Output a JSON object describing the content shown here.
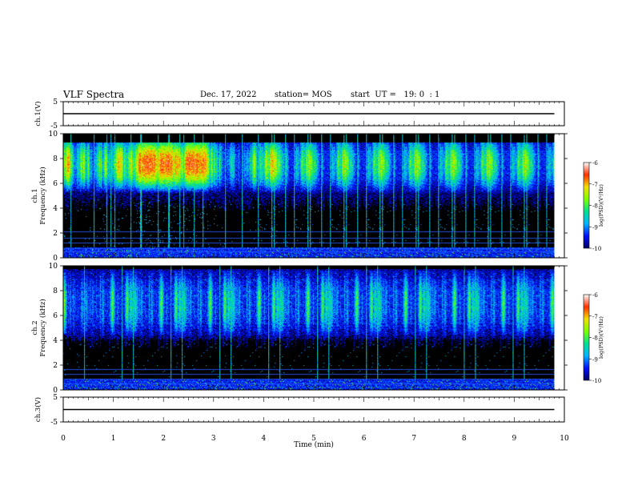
{
  "header": {
    "title": "VLF Spectra",
    "date": "Dec. 17, 2022",
    "station": "station= MOS",
    "start": "start  UT =   19: 0  : 1"
  },
  "chart_data": [
    {
      "type": "line",
      "ylabel": "ch.1(V)",
      "ylim": [
        -5,
        5
      ],
      "yticks": [
        "5",
        "-5"
      ],
      "series": [
        {
          "x": [
            0,
            9.8
          ],
          "y": [
            0,
            0
          ]
        }
      ]
    },
    {
      "type": "heatmap",
      "ylabel_lines": [
        "ch.1",
        "Frequency (kHz)"
      ],
      "ylim": [
        0,
        10
      ],
      "yticks": [
        "0",
        "2",
        "4",
        "6",
        "8",
        "10"
      ],
      "xlim": [
        0,
        10
      ],
      "data_xmax": 9.8,
      "colorbar": {
        "label": "log(PSD)(V²/Hz)",
        "range": [
          -10,
          -6
        ],
        "ticks": [
          "-6",
          "-7",
          "-8",
          "-9",
          "-10"
        ],
        "colors": [
          "#000060",
          "#0010ff",
          "#00b4ff",
          "#00e090",
          "#7cff00",
          "#f0e000",
          "#ff3000",
          "#ffffff"
        ]
      },
      "band_khz": [
        5.0,
        9.3
      ],
      "peak_khz": 7.6,
      "lines_khz": [
        0.5,
        0.8,
        1.2,
        1.6,
        2.1
      ]
    },
    {
      "type": "heatmap",
      "ylabel_lines": [
        "ch.2",
        "Frequency (kHz)"
      ],
      "ylim": [
        0,
        10
      ],
      "yticks": [
        "0",
        "2",
        "4",
        "6",
        "8",
        "10"
      ],
      "xlim": [
        0,
        10
      ],
      "data_xmax": 9.8,
      "colorbar": {
        "label": "log(PSD)(V²/Hz)",
        "range": [
          -10,
          -6
        ],
        "ticks": [
          "-6",
          "-7",
          "-8",
          "-9",
          "-10"
        ],
        "colors": [
          "#000060",
          "#0010ff",
          "#00b4ff",
          "#00e090",
          "#7cff00",
          "#f0e000",
          "#ff3000",
          "#ffffff"
        ]
      },
      "band_khz": [
        4.5,
        9.8
      ],
      "peak_khz": 7.0,
      "lines_khz": [
        0.5,
        0.9,
        1.3,
        1.7
      ]
    },
    {
      "type": "line",
      "ylabel": "ch.3(V)",
      "ylim": [
        -5,
        5
      ],
      "yticks": [
        "5",
        "-5"
      ],
      "xlabel": "Time  (min)",
      "xticks": [
        "0",
        "1",
        "2",
        "3",
        "4",
        "5",
        "6",
        "7",
        "8",
        "9",
        "10"
      ],
      "series": [
        {
          "x": [
            0,
            9.8
          ],
          "y": [
            0,
            0
          ]
        }
      ]
    }
  ]
}
